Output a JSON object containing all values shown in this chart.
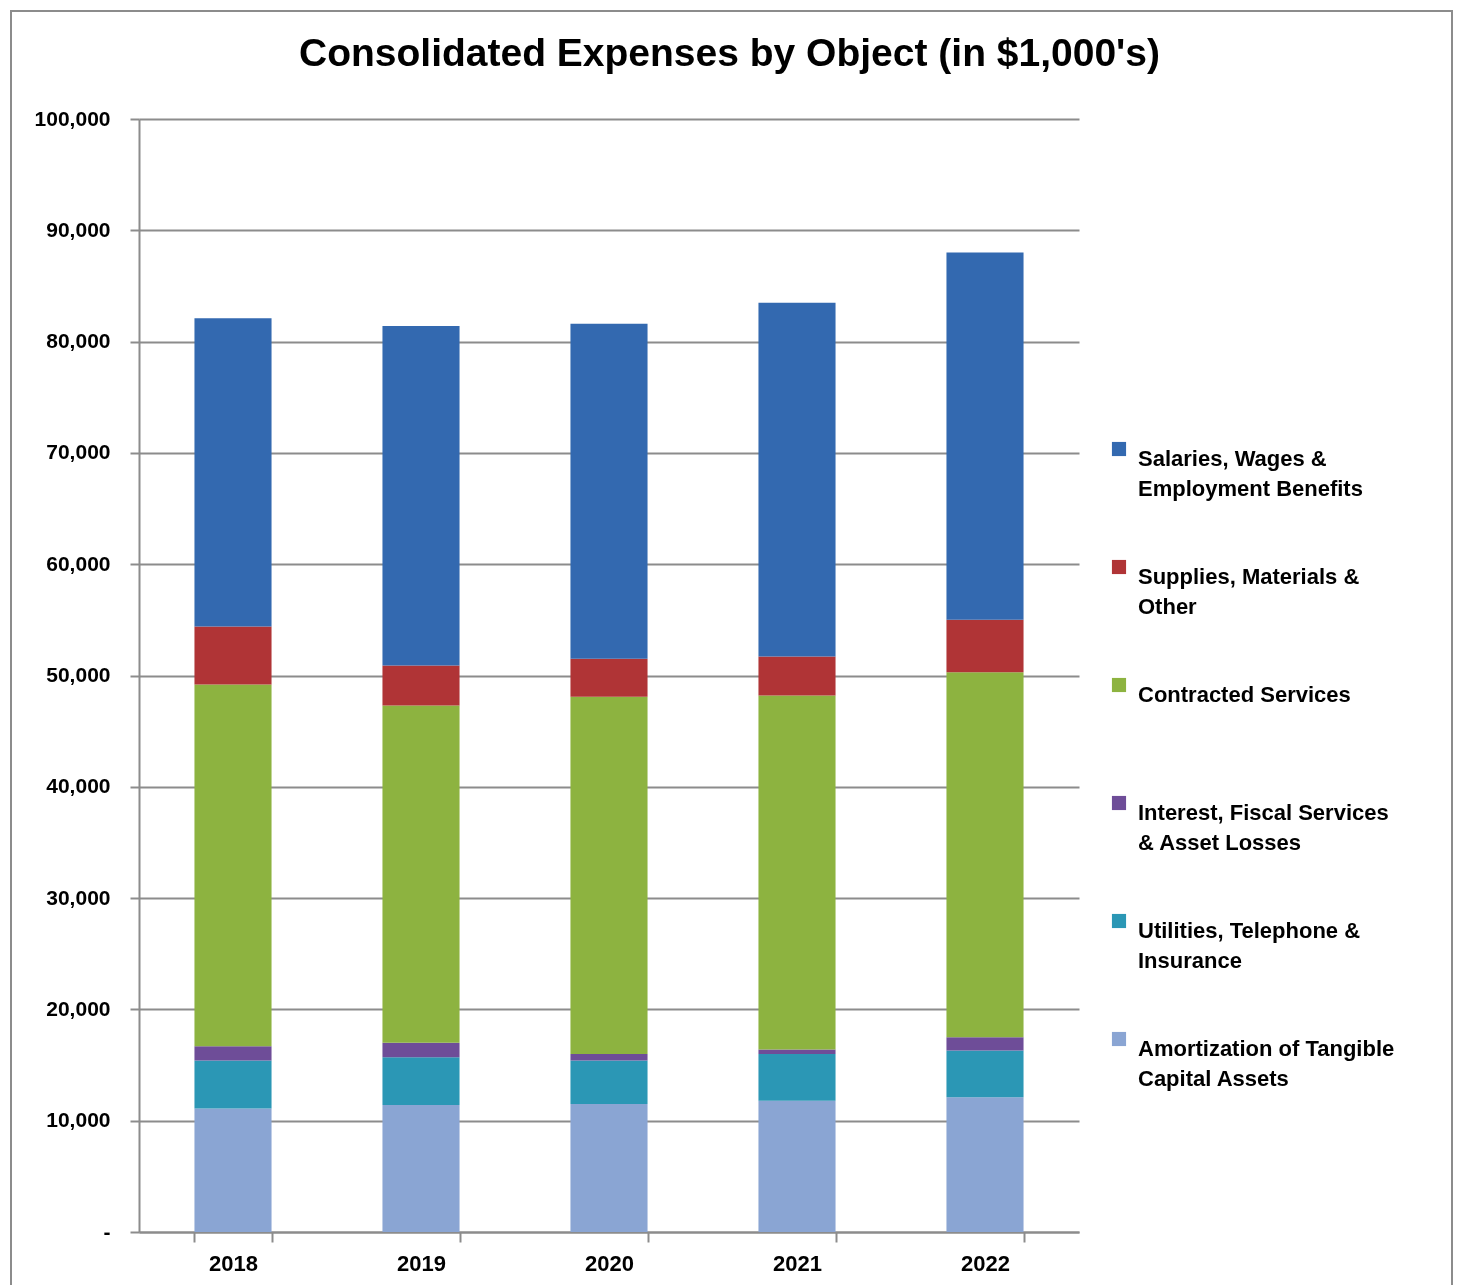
{
  "chart_data": {
    "type": "bar",
    "title": "Consolidated Expenses by Object (in $1,000's)",
    "categories": [
      "2018",
      "2019",
      "2020",
      "2021",
      "2022"
    ],
    "stacked": true,
    "series": [
      {
        "name": "Amortization of Tangible Capital Assets",
        "color": "#8aa5d3",
        "values": [
          11100,
          11400,
          11500,
          11800,
          12100
        ]
      },
      {
        "name": "Utilities, Telephone & Insurance",
        "color": "#2b97b5",
        "values": [
          4300,
          4300,
          3900,
          4200,
          4200
        ]
      },
      {
        "name": "Interest, Fiscal Services & Asset Losses",
        "color": "#6e4d98",
        "values": [
          1300,
          1300,
          600,
          400,
          1200
        ]
      },
      {
        "name": "Contracted Services",
        "color": "#8db340",
        "values": [
          32500,
          30300,
          32100,
          31800,
          32800
        ]
      },
      {
        "name": "Supplies, Materials & Other",
        "color": "#b03436",
        "values": [
          5200,
          3600,
          3400,
          3500,
          4700
        ]
      },
      {
        "name": "Salaries, Wages & Employment Benefits",
        "color": "#3369b0",
        "values": [
          27700,
          30500,
          30100,
          31800,
          33000
        ]
      }
    ],
    "ylim": [
      0,
      100000
    ],
    "yticks": [
      {
        "value": 0,
        "label": "-"
      },
      {
        "value": 10000,
        "label": "10,000"
      },
      {
        "value": 20000,
        "label": "20,000"
      },
      {
        "value": 30000,
        "label": "30,000"
      },
      {
        "value": 40000,
        "label": "40,000"
      },
      {
        "value": 50000,
        "label": "50,000"
      },
      {
        "value": 60000,
        "label": "60,000"
      },
      {
        "value": 70000,
        "label": "70,000"
      },
      {
        "value": 80000,
        "label": "80,000"
      },
      {
        "value": 90000,
        "label": "90,000"
      },
      {
        "value": 100000,
        "label": "100,000"
      }
    ],
    "grid": "y",
    "legend": "right"
  }
}
